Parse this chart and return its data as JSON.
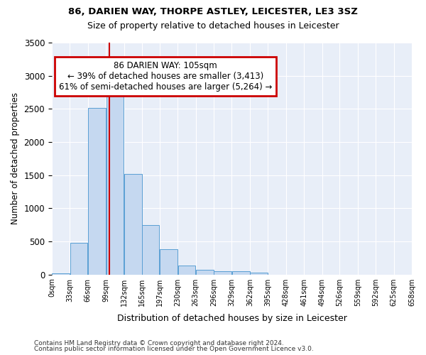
{
  "title1": "86, DARIEN WAY, THORPE ASTLEY, LEICESTER, LE3 3SZ",
  "title2": "Size of property relative to detached houses in Leicester",
  "xlabel": "Distribution of detached houses by size in Leicester",
  "ylabel": "Number of detached properties",
  "bar_values": [
    20,
    480,
    2510,
    2820,
    1520,
    750,
    380,
    140,
    70,
    55,
    55,
    30,
    0,
    0,
    0,
    0,
    0,
    0,
    0,
    0
  ],
  "bar_edges": [
    0,
    33,
    66,
    99,
    132,
    165,
    197,
    230,
    263,
    296,
    329,
    362,
    395,
    428,
    461,
    494,
    526,
    559,
    592,
    625,
    658
  ],
  "xtick_labels": [
    "0sqm",
    "33sqm",
    "66sqm",
    "99sqm",
    "132sqm",
    "165sqm",
    "197sqm",
    "230sqm",
    "263sqm",
    "296sqm",
    "329sqm",
    "362sqm",
    "395sqm",
    "428sqm",
    "461sqm",
    "494sqm",
    "526sqm",
    "559sqm",
    "592sqm",
    "625sqm",
    "658sqm"
  ],
  "property_size": 105,
  "annotation_title": "86 DARIEN WAY: 105sqm",
  "annotation_line1": "← 39% of detached houses are smaller (3,413)",
  "annotation_line2": "61% of semi-detached houses are larger (5,264) →",
  "bar_color": "#c5d8f0",
  "bar_edge_color": "#5a9fd4",
  "vline_color": "#cc0000",
  "annotation_box_color": "#cc0000",
  "fig_bg_color": "#ffffff",
  "plot_bg_color": "#e8eef8",
  "grid_color": "#ffffff",
  "ylim": [
    0,
    3500
  ],
  "yticks": [
    0,
    500,
    1000,
    1500,
    2000,
    2500,
    3000,
    3500
  ],
  "footer1": "Contains HM Land Registry data © Crown copyright and database right 2024.",
  "footer2": "Contains public sector information licensed under the Open Government Licence v3.0."
}
